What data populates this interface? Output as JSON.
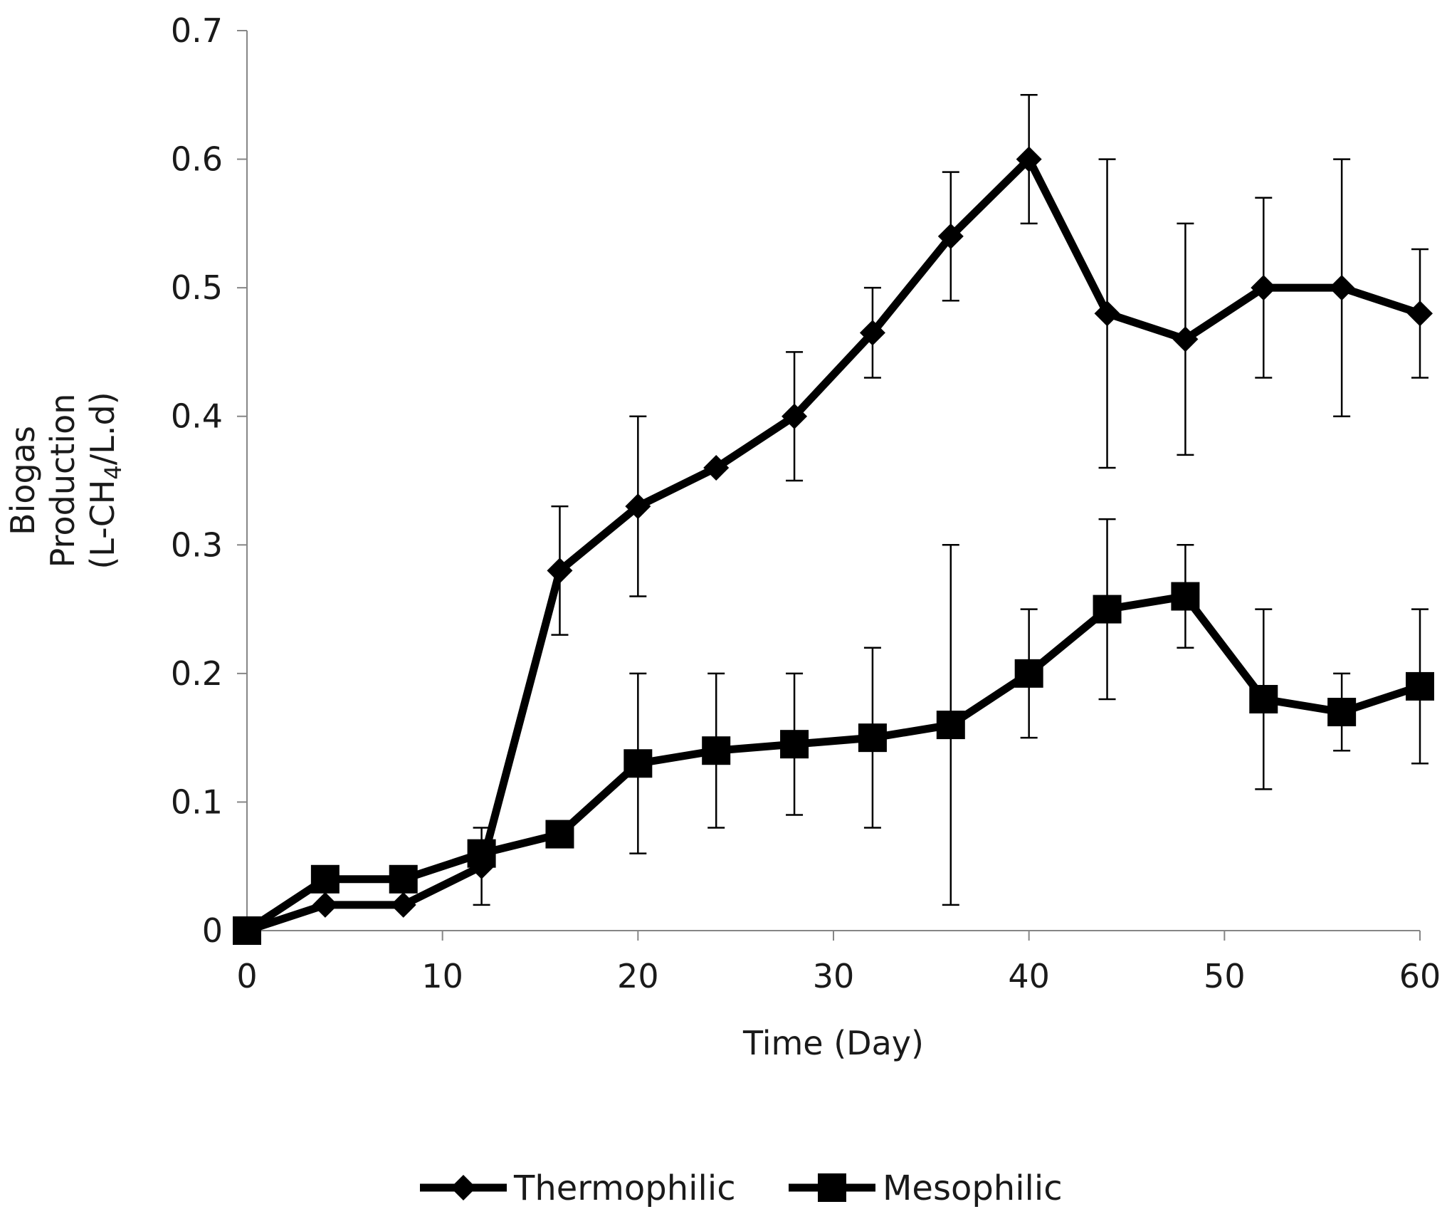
{
  "chart_data": {
    "type": "line",
    "title": "",
    "xlabel": "Time (Day)",
    "ylabel_lines": [
      "Biogas",
      "Production",
      "(L-CH",
      "4",
      "/L.d)"
    ],
    "xlim": [
      0,
      60
    ],
    "ylim": [
      0,
      0.7
    ],
    "x_ticks": [
      0,
      10,
      20,
      30,
      40,
      50,
      60
    ],
    "y_ticks": [
      0,
      0.1,
      0.2,
      0.3,
      0.4,
      0.5,
      0.6,
      0.7
    ],
    "x_tick_labels": [
      "0",
      "10",
      "20",
      "30",
      "40",
      "50",
      "60"
    ],
    "y_tick_labels": [
      "0",
      "0.1",
      "0.2",
      "0.3",
      "0.4",
      "0.5",
      "0.6",
      "0.7"
    ],
    "grid": false,
    "legend_position": "bottom-center",
    "x": [
      0,
      4,
      8,
      12,
      16,
      20,
      24,
      28,
      32,
      36,
      40,
      44,
      48,
      52,
      56,
      60
    ],
    "series": [
      {
        "name": "Thermophilic",
        "marker": "diamond",
        "color": "#000000",
        "values": [
          0,
          0.02,
          0.02,
          0.05,
          0.28,
          0.33,
          0.36,
          0.4,
          0.465,
          0.54,
          0.6,
          0.48,
          0.46,
          0.5,
          0.5,
          0.48
        ],
        "error_upper": [
          null,
          null,
          null,
          0.08,
          0.33,
          0.4,
          null,
          0.45,
          0.5,
          0.59,
          0.65,
          0.6,
          0.55,
          0.57,
          0.6,
          0.53
        ],
        "error_lower": [
          null,
          null,
          null,
          0.02,
          0.23,
          0.26,
          null,
          0.35,
          0.43,
          0.49,
          0.55,
          0.36,
          0.37,
          0.43,
          0.4,
          0.43
        ]
      },
      {
        "name": "Mesophilic",
        "marker": "square",
        "color": "#000000",
        "values": [
          0,
          0.04,
          0.04,
          0.06,
          0.075,
          0.13,
          0.14,
          0.145,
          0.15,
          0.16,
          0.2,
          0.25,
          0.26,
          0.18,
          0.17,
          0.19
        ],
        "error_upper": [
          null,
          null,
          null,
          null,
          null,
          0.2,
          0.2,
          0.2,
          0.22,
          0.3,
          0.25,
          0.32,
          0.3,
          0.25,
          0.2,
          0.25
        ],
        "error_lower": [
          null,
          null,
          null,
          null,
          null,
          0.06,
          0.08,
          0.09,
          0.08,
          0.02,
          0.15,
          0.18,
          0.22,
          0.11,
          0.14,
          0.13
        ]
      }
    ]
  }
}
